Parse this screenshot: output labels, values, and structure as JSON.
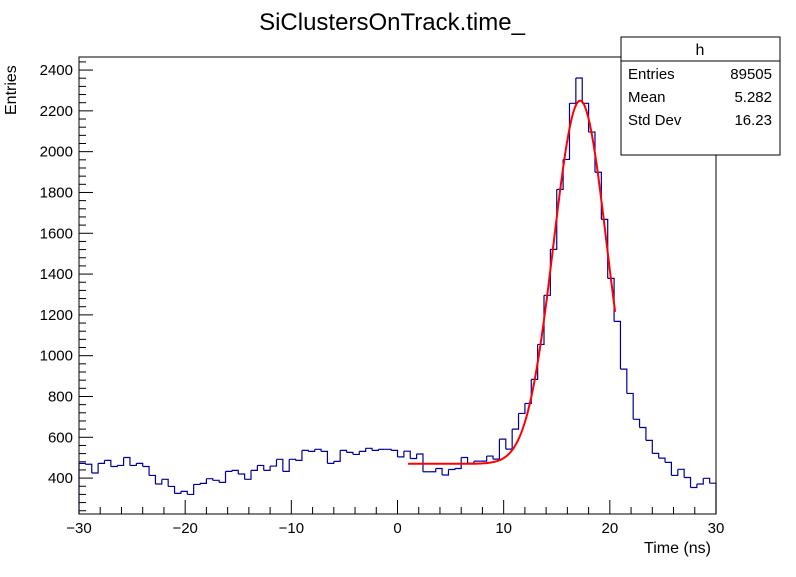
{
  "chart_data": {
    "type": "histogram",
    "title": "SiClustersOnTrack.time_",
    "xlabel": "Time (ns)",
    "ylabel": "Entries",
    "xlim": [
      -30,
      30
    ],
    "ylim": [
      224,
      2464
    ],
    "xticks": [
      -30,
      -20,
      -10,
      0,
      10,
      20,
      30
    ],
    "yticks": [
      400,
      600,
      800,
      1000,
      1200,
      1400,
      1600,
      1800,
      2000,
      2200,
      2400
    ],
    "grid": false,
    "bin_width": 0.6,
    "bin_start": -30,
    "values": [
      472,
      468,
      425,
      472,
      487,
      457,
      462,
      501,
      462,
      472,
      457,
      413,
      371,
      394,
      359,
      325,
      335,
      320,
      369,
      374,
      397,
      389,
      379,
      433,
      438,
      420,
      394,
      438,
      462,
      438,
      459,
      492,
      433,
      492,
      487,
      536,
      531,
      541,
      531,
      472,
      482,
      536,
      526,
      516,
      531,
      546,
      536,
      541,
      541,
      536,
      504,
      532,
      496,
      518,
      431,
      431,
      447,
      415,
      442,
      447,
      501,
      473,
      483,
      483,
      508,
      493,
      591,
      542,
      640,
      717,
      766,
      884,
      1055,
      1296,
      1521,
      1815,
      1962,
      2237,
      2361,
      2237,
      2096,
      1899,
      1668,
      1379,
      1168,
      934,
      815,
      688,
      648,
      585,
      521,
      498,
      477,
      413,
      443,
      403,
      354,
      371,
      399,
      375
    ],
    "line_color": "#000099",
    "fit": {
      "function": "gaussian + constant",
      "color": "#ff0000",
      "range": [
        1,
        20.5
      ],
      "constant": 470,
      "amplitude": 1780,
      "mean": 17.2,
      "sigma": 2.5
    },
    "legend_placement": "top-right",
    "stats": {
      "name": "h",
      "rows": [
        {
          "label": "Entries",
          "value": "89505"
        },
        {
          "label": "Mean",
          "value": "5.282"
        },
        {
          "label": "Std Dev",
          "value": "16.23"
        }
      ]
    }
  }
}
